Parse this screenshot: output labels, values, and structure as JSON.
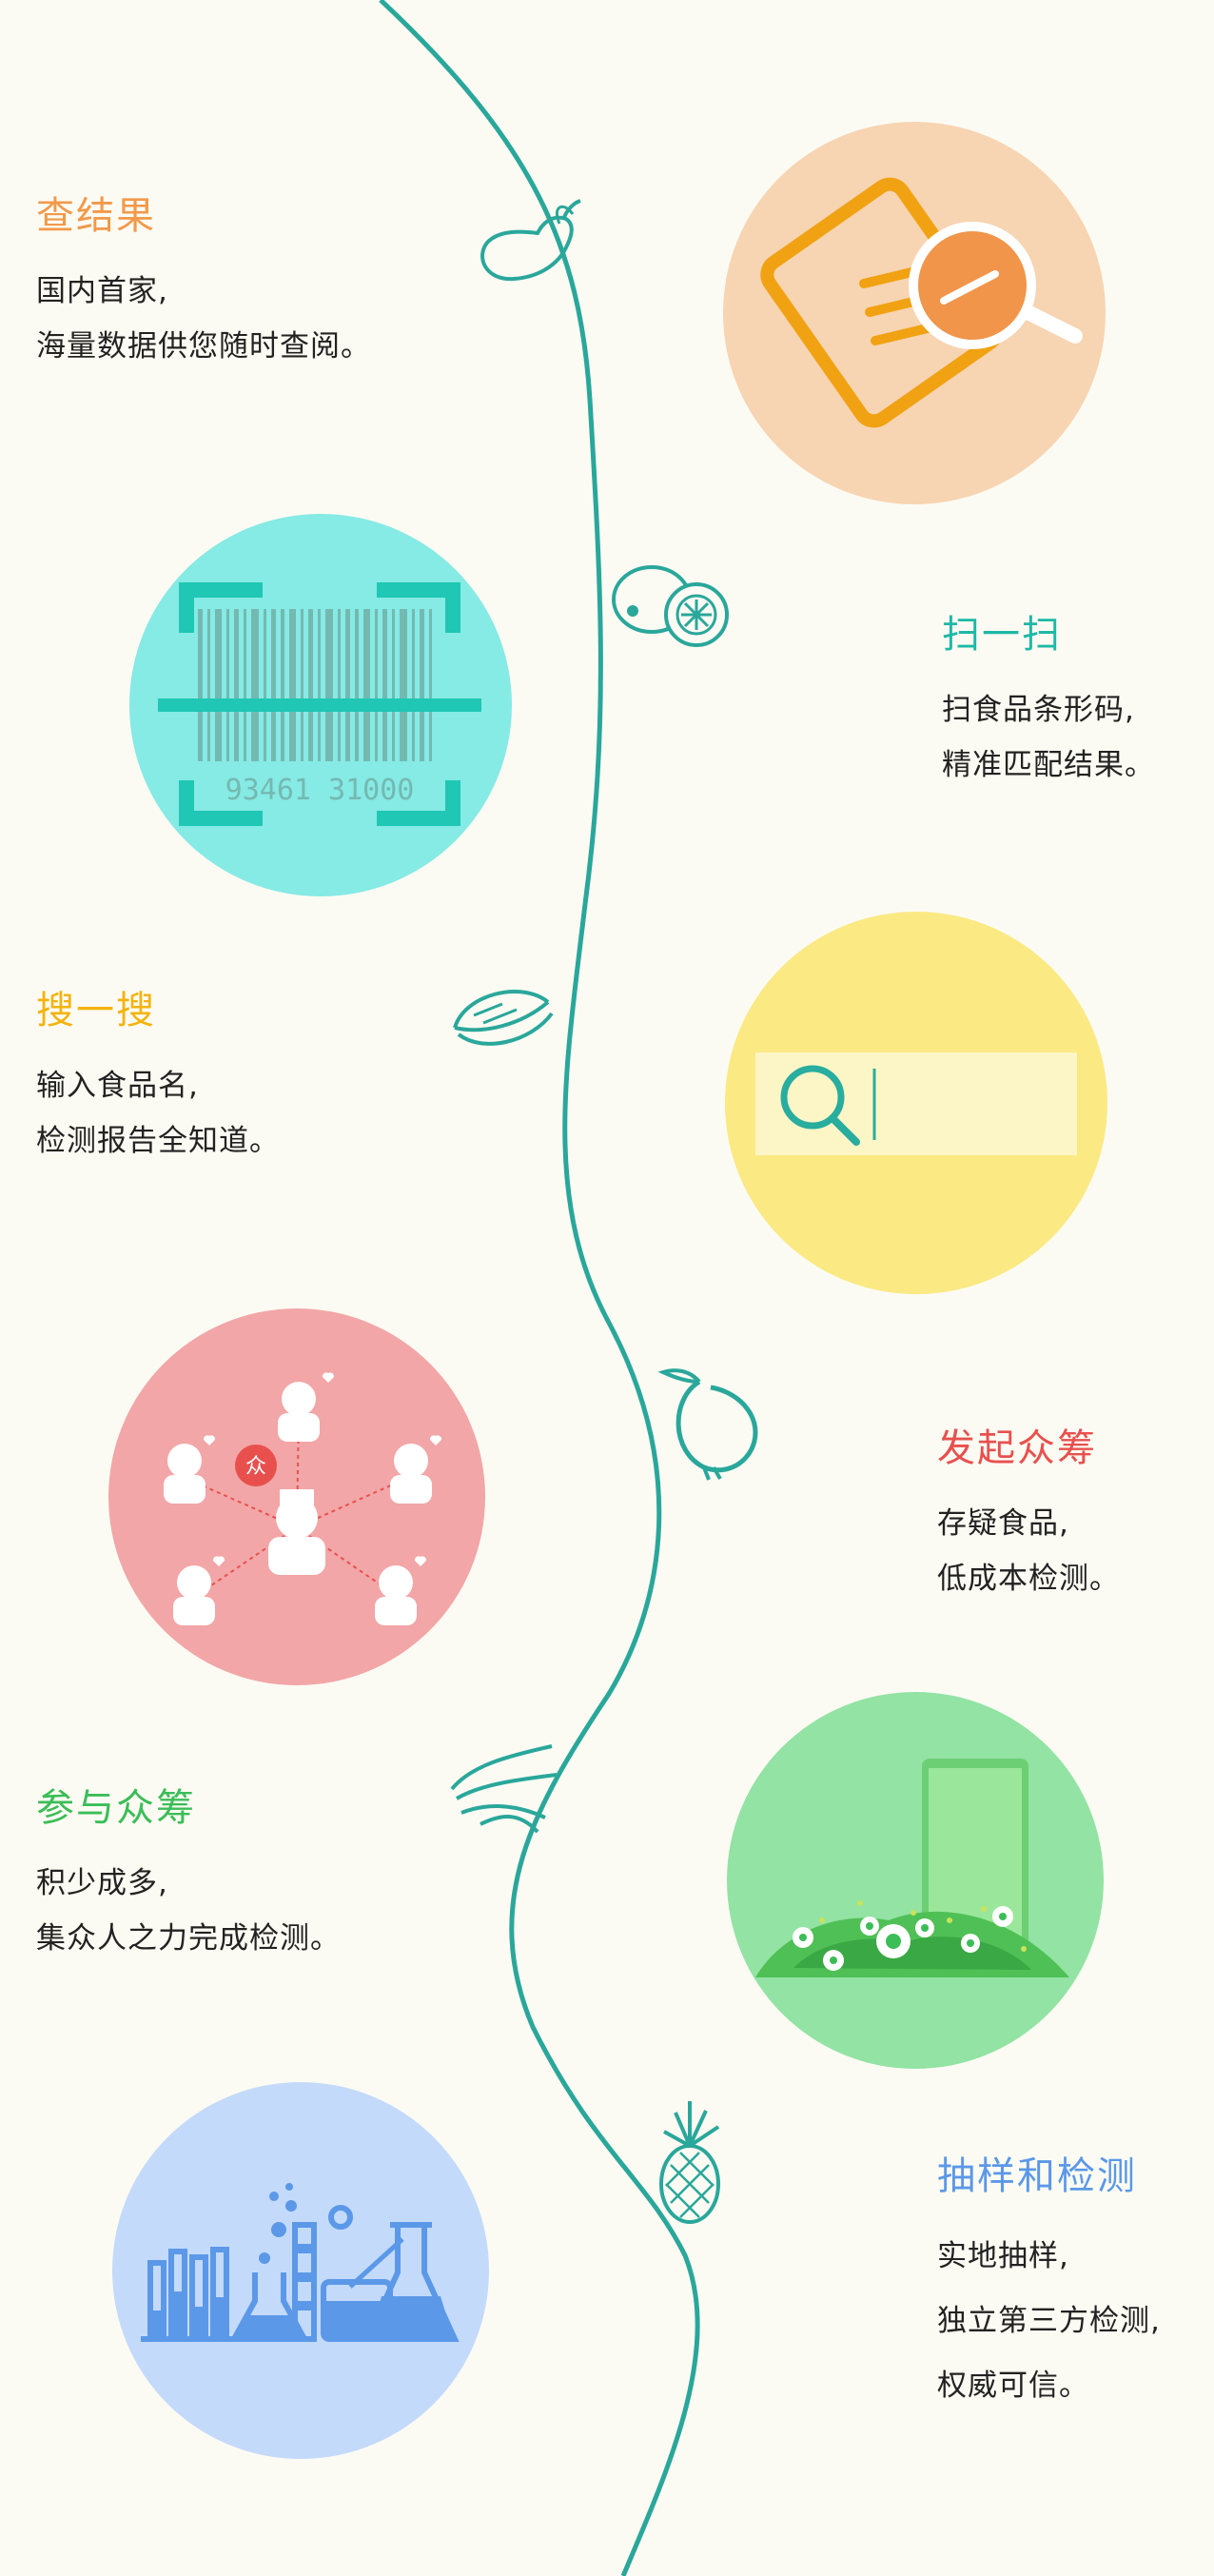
{
  "colors": {
    "background": "#fcfbf3",
    "vine": "#2aa79b",
    "orange": "#f2994a",
    "teal": "#1fb8a6",
    "yellow": "#f5b30f",
    "red": "#e8504e",
    "green": "#3bbd57",
    "blue": "#5b98e8"
  },
  "features": [
    {
      "id": "check-results",
      "title": "查结果",
      "lines": [
        "国内首家,",
        "海量数据供您随时查阅。"
      ],
      "icon": "document-search-icon"
    },
    {
      "id": "scan",
      "title": "扫一扫",
      "lines": [
        "扫食品条形码,",
        "精准匹配结果。"
      ],
      "icon": "barcode-scan-icon",
      "barcode_number": "93461 31000"
    },
    {
      "id": "search",
      "title": "搜一搜",
      "lines": [
        "输入食品名,",
        "检测报告全知道。"
      ],
      "icon": "search-bar-icon"
    },
    {
      "id": "crowdfund",
      "title": "发起众筹",
      "lines": [
        "存疑食品,",
        "低成本检测。"
      ],
      "icon": "crowd-network-icon",
      "badge": "众"
    },
    {
      "id": "join",
      "title": "参与众筹",
      "lines": [
        "积少成多,",
        "集众人之力完成检测。"
      ],
      "icon": "phone-map-icon"
    },
    {
      "id": "sampling",
      "title": "抽样和检测",
      "lines": [
        "实地抽样,",
        "独立第三方检测,",
        "权威可信。"
      ],
      "icon": "laboratory-icon"
    }
  ],
  "doodles": [
    "pear-icon",
    "kiwi-icon",
    "sandwich-icon",
    "onion-icon",
    "chili-icon",
    "pineapple-icon"
  ]
}
